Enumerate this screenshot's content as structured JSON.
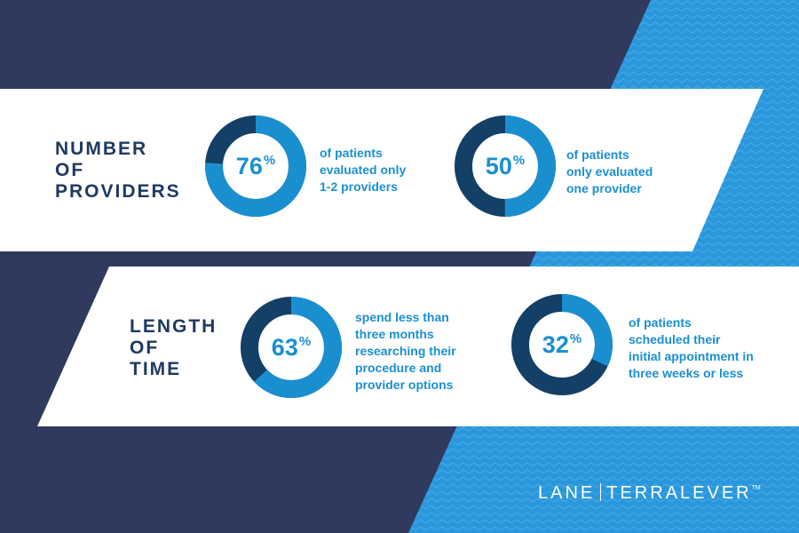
{
  "colors": {
    "navy": "#2f3a5e",
    "accent_blue": "#1a8fd0",
    "dark_blue": "#143f66",
    "heading": "#1f3a60",
    "white": "#ffffff"
  },
  "sections": [
    {
      "heading": [
        "NUMBER",
        "OF",
        "PROVIDERS"
      ]
    },
    {
      "heading": [
        "LENGTH",
        "OF",
        "TIME"
      ]
    }
  ],
  "chart_data": [
    {
      "type": "pie",
      "value": 76,
      "value_label": "76",
      "unit": "%",
      "description": [
        "of patients",
        "evaluated only",
        "1-2 providers"
      ]
    },
    {
      "type": "pie",
      "value": 50,
      "value_label": "50",
      "unit": "%",
      "description": [
        "of patients",
        "only evaluated",
        "one provider"
      ]
    },
    {
      "type": "pie",
      "value": 63,
      "value_label": "63",
      "unit": "%",
      "description": [
        "spend less than",
        "three months",
        "researching their",
        "procedure and",
        "provider options"
      ]
    },
    {
      "type": "pie",
      "value": 32,
      "value_label": "32",
      "unit": "%",
      "description": [
        "of patients",
        "scheduled their",
        "initial appointment in",
        "three weeks or less"
      ]
    }
  ],
  "logo": {
    "left": "LANE",
    "right": "TERRALEVER",
    "tm": "TM"
  }
}
